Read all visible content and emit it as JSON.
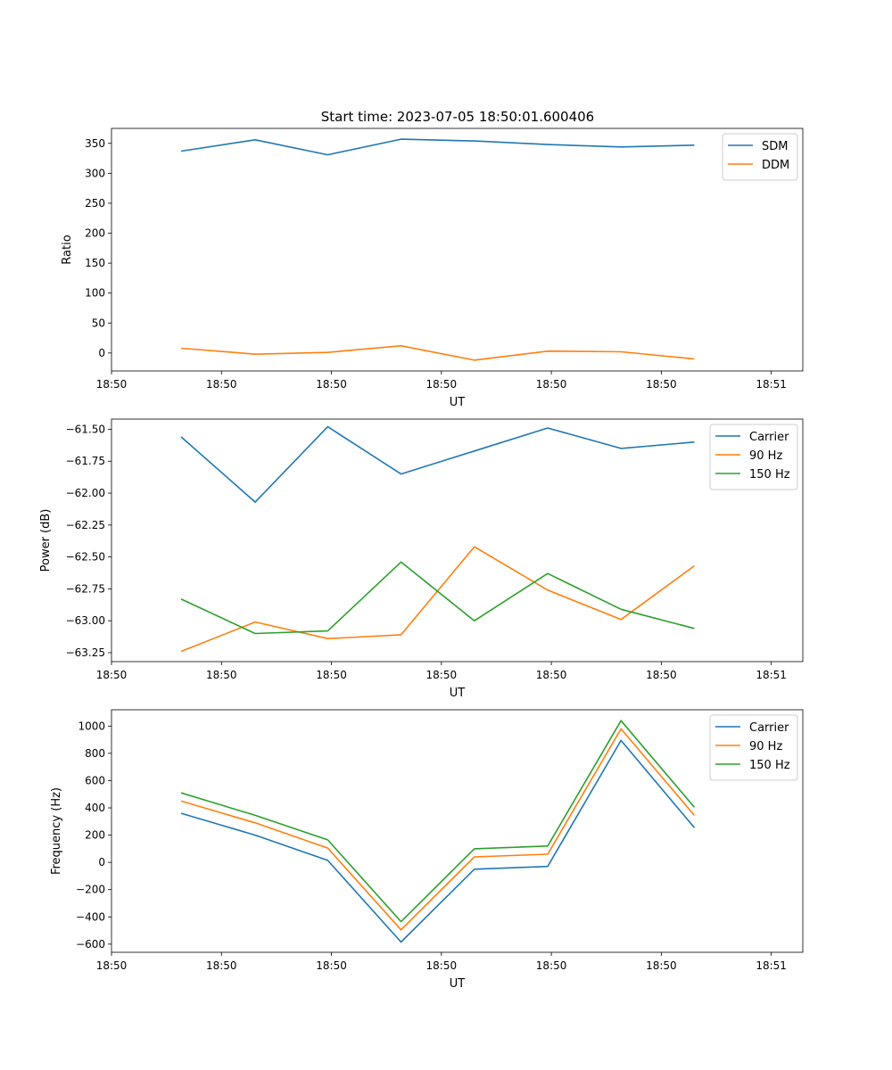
{
  "figure": {
    "title": "Start time: 2023-07-05 18:50:01.600406"
  },
  "colors": {
    "blue": "#1f77b4",
    "orange": "#ff7f0e",
    "green": "#2ca02c"
  },
  "chart_data": [
    {
      "type": "line",
      "ylabel": "Ratio",
      "xlabel": "UT",
      "xlim": [
        0,
        9.43
      ],
      "ylim": [
        -30,
        375
      ],
      "x": [
        0.95,
        1.96,
        2.95,
        3.95,
        4.95,
        5.95,
        6.95,
        7.95
      ],
      "xticks": [
        0.0,
        1.5,
        3.0,
        4.5,
        6.0,
        7.5,
        9.0
      ],
      "xtick_labels": [
        "18:50",
        "18:50",
        "18:50",
        "18:50",
        "18:50",
        "18:50",
        "18:51"
      ],
      "yticks": [
        0,
        50,
        100,
        150,
        200,
        250,
        300,
        350
      ],
      "ytick_labels": [
        "0",
        "50",
        "100",
        "150",
        "200",
        "250",
        "300",
        "350"
      ],
      "legend": "top-right",
      "series": [
        {
          "name": "SDM",
          "color": "#1f77b4",
          "values": [
            337,
            356,
            331,
            357,
            354,
            348,
            344,
            347
          ]
        },
        {
          "name": "DDM",
          "color": "#ff7f0e",
          "values": [
            8,
            -2,
            1,
            12,
            -12,
            3,
            2,
            -10
          ]
        }
      ]
    },
    {
      "type": "line",
      "ylabel": "Power (dB)",
      "xlabel": "UT",
      "xlim": [
        0,
        9.43
      ],
      "ylim": [
        -63.32,
        -61.42
      ],
      "x": [
        0.95,
        1.96,
        2.95,
        3.95,
        4.95,
        5.95,
        6.95,
        7.95
      ],
      "xticks": [
        0.0,
        1.5,
        3.0,
        4.5,
        6.0,
        7.5,
        9.0
      ],
      "xtick_labels": [
        "18:50",
        "18:50",
        "18:50",
        "18:50",
        "18:50",
        "18:50",
        "18:51"
      ],
      "yticks": [
        -63.25,
        -63.0,
        -62.75,
        -62.5,
        -62.25,
        -62.0,
        -61.75,
        -61.5
      ],
      "ytick_labels": [
        "−63.25",
        "−63.00",
        "−62.75",
        "−62.50",
        "−62.25",
        "−62.00",
        "−61.75",
        "−61.50"
      ],
      "legend": "top-right",
      "series": [
        {
          "name": "Carrier",
          "color": "#1f77b4",
          "values": [
            -61.56,
            -62.07,
            -61.48,
            -61.85,
            -61.67,
            -61.49,
            -61.65,
            -61.6
          ]
        },
        {
          "name": "90 Hz",
          "color": "#ff7f0e",
          "values": [
            -63.24,
            -63.01,
            -63.14,
            -63.11,
            -62.42,
            -62.76,
            -62.99,
            -62.57
          ]
        },
        {
          "name": "150 Hz",
          "color": "#2ca02c",
          "values": [
            -62.83,
            -63.1,
            -63.08,
            -62.54,
            -63.0,
            -62.63,
            -62.91,
            -63.06
          ]
        }
      ]
    },
    {
      "type": "line",
      "ylabel": "Frequency (Hz)",
      "xlabel": "UT",
      "xlim": [
        0,
        9.43
      ],
      "ylim": [
        -660,
        1120
      ],
      "x": [
        0.95,
        1.96,
        2.95,
        3.95,
        4.95,
        5.95,
        6.95,
        7.95
      ],
      "xticks": [
        0.0,
        1.5,
        3.0,
        4.5,
        6.0,
        7.5,
        9.0
      ],
      "xtick_labels": [
        "18:50",
        "18:50",
        "18:50",
        "18:50",
        "18:50",
        "18:50",
        "18:51"
      ],
      "yticks": [
        -600,
        -400,
        -200,
        0,
        200,
        400,
        600,
        800,
        1000
      ],
      "ytick_labels": [
        "−600",
        "−400",
        "−200",
        "0",
        "200",
        "400",
        "600",
        "800",
        "1000"
      ],
      "legend": "top-right",
      "series": [
        {
          "name": "Carrier",
          "color": "#1f77b4",
          "values": [
            360,
            200,
            15,
            -585,
            -50,
            -30,
            895,
            255
          ]
        },
        {
          "name": "90 Hz",
          "color": "#ff7f0e",
          "values": [
            450,
            290,
            105,
            -495,
            40,
            60,
            980,
            345
          ]
        },
        {
          "name": "150 Hz",
          "color": "#2ca02c",
          "values": [
            510,
            345,
            165,
            -435,
            100,
            120,
            1040,
            405
          ]
        }
      ]
    }
  ]
}
